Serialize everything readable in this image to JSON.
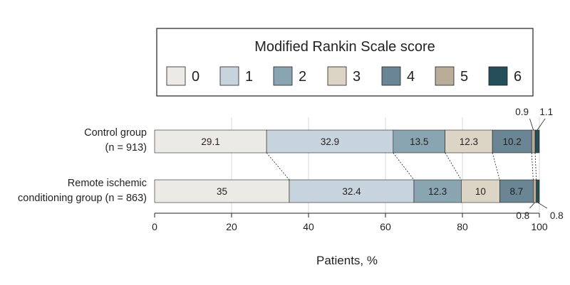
{
  "chart_data": {
    "type": "bar",
    "orientation": "horizontal",
    "stacked": true,
    "legend_title": "Modified Rankin Scale score",
    "legend_placement": "top",
    "categories": [
      "0",
      "1",
      "2",
      "3",
      "4",
      "5",
      "6"
    ],
    "colors": [
      "#eceae5",
      "#c7d4de",
      "#89a5b2",
      "#dcd5c6",
      "#6a8593",
      "#b9ac99",
      "#254e5b"
    ],
    "groups": [
      {
        "label_line1": "Control group",
        "label_line2": "(n = 913)",
        "values": [
          29.1,
          32.9,
          13.5,
          12.3,
          10.2,
          0.9,
          1.1
        ],
        "labels": [
          "29.1",
          "32.9",
          "13.5",
          "12.3",
          "10.2",
          "0.9",
          "1.1"
        ]
      },
      {
        "label_line1": "Remote ischemic",
        "label_line2": "conditioning group (n = 863)",
        "values": [
          35,
          32.4,
          12.3,
          10,
          8.7,
          0.8,
          0.8
        ],
        "labels": [
          "35",
          "32.4",
          "12.3",
          "10",
          "8.7",
          "0.8",
          "0.8"
        ]
      }
    ],
    "xlabel": "Patients, %",
    "xlim": [
      0,
      100
    ],
    "xticks": [
      0,
      20,
      40,
      60,
      80,
      100
    ],
    "grid": true
  }
}
